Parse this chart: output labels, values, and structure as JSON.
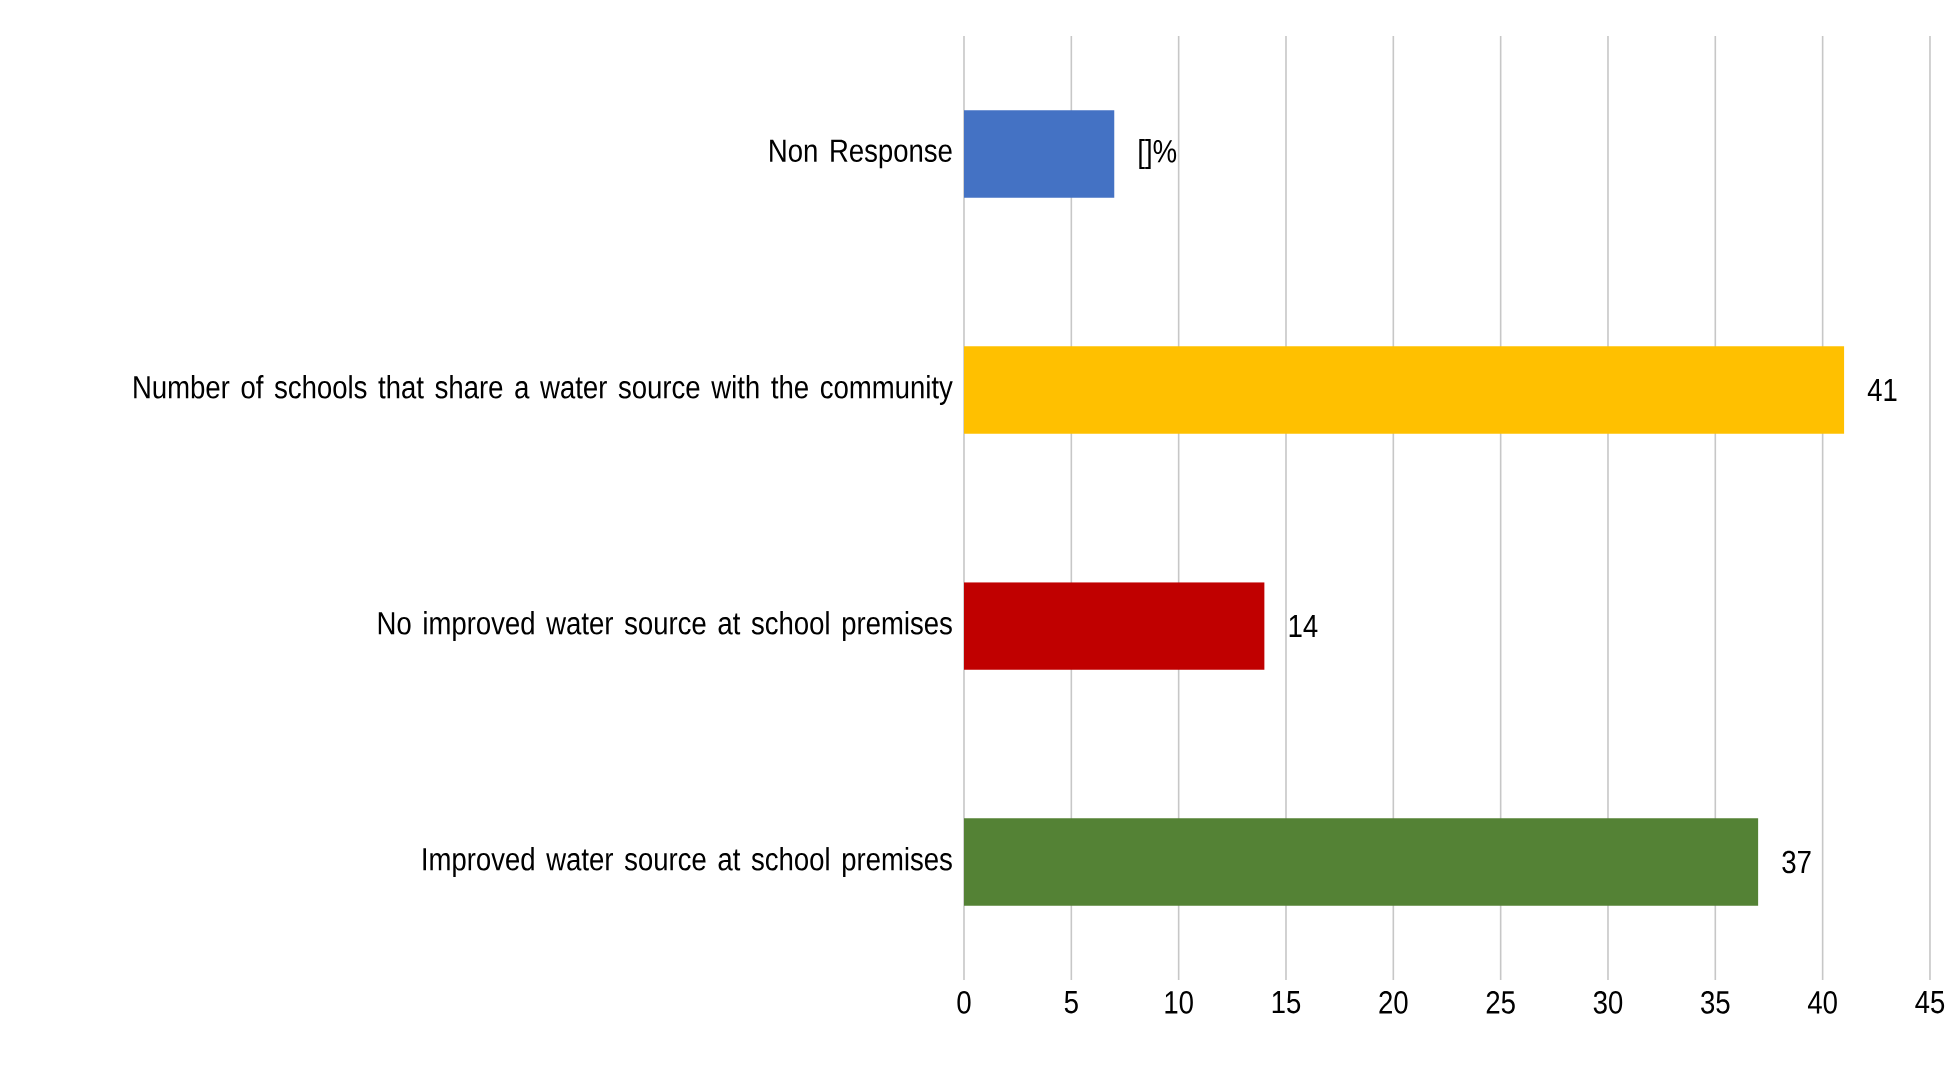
{
  "chart_data": {
    "type": "bar",
    "orientation": "horizontal",
    "categories": [
      "Non Response",
      "Number of schools that share a water source with the community",
      "No improved water source at school premises",
      "Improved water source at school premises"
    ],
    "values": [
      7,
      41,
      14,
      37
    ],
    "colors": [
      "#4472c4",
      "#ffc000",
      "#c00000",
      "#548235"
    ],
    "value_labels": [
      "[]%",
      "41",
      "14",
      "37"
    ],
    "xlim": [
      0,
      45
    ],
    "xticks": [
      0,
      5,
      10,
      15,
      20,
      25,
      30,
      35,
      40,
      45
    ],
    "grid": "x"
  }
}
